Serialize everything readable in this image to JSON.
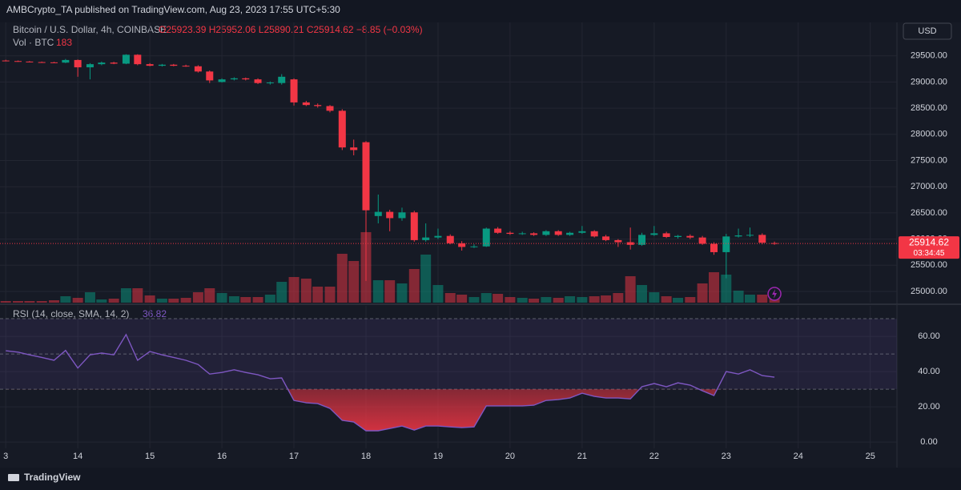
{
  "header": {
    "published": "AMBCrypto_TA published on TradingView.com, Aug 23, 2023 17:55 UTC+5:30"
  },
  "footer": {
    "brand": "TradingView"
  },
  "chart_data": {
    "type": "candlestick",
    "title": "Bitcoin / U.S. Dollar, 4h, COINBASE",
    "ohlc_text": "O25923.39 H25952.06 L25890.21 C25914.62 −8.85 (−0.03%)",
    "currency": "USD",
    "countdown": "03:34:45",
    "up_color": "#089981",
    "down_color": "#f23645",
    "grid": true,
    "xlim": [
      12.92,
      25.37
    ],
    "xticks": [
      {
        "value": 13,
        "label": "3"
      },
      14,
      15,
      16,
      17,
      18,
      19,
      20,
      21,
      22,
      23,
      24,
      25
    ],
    "ylim": [
      24786,
      30107
    ],
    "yticks": [
      {
        "value": 25000,
        "label": "25000.00"
      },
      {
        "value": 25500,
        "label": "25500.00"
      },
      {
        "value": 26000,
        "label": "26000.00"
      },
      {
        "value": 26500,
        "label": "26500.00"
      },
      {
        "value": 27000,
        "label": "27000.00"
      },
      {
        "value": 27500,
        "label": "27500.00"
      },
      {
        "value": 28000,
        "label": "28000.00"
      },
      {
        "value": 28500,
        "label": "28500.00"
      },
      {
        "value": 29000,
        "label": "29000.00"
      },
      {
        "value": 29500,
        "label": "29500.00"
      }
    ],
    "x": [
      13,
      13.17,
      13.33,
      13.5,
      13.67,
      13.83,
      14,
      14.17,
      14.33,
      14.5,
      14.67,
      14.83,
      15,
      15.17,
      15.33,
      15.5,
      15.67,
      15.83,
      16,
      16.17,
      16.33,
      16.5,
      16.67,
      16.83,
      17,
      17.17,
      17.33,
      17.5,
      17.67,
      17.83,
      18,
      18.17,
      18.33,
      18.5,
      18.67,
      18.83,
      19,
      19.17,
      19.33,
      19.5,
      19.67,
      19.83,
      20,
      20.17,
      20.33,
      20.5,
      20.67,
      20.83,
      21,
      21.17,
      21.33,
      21.5,
      21.67,
      21.83,
      22,
      22.17,
      22.33,
      22.5,
      22.67,
      22.83,
      23,
      23.17,
      23.33,
      23.5,
      23.67
    ],
    "open": [
      29410,
      29400,
      29390,
      29380,
      29375,
      29370,
      29420,
      29280,
      29340,
      29370,
      29350,
      29520,
      29340,
      29310,
      29330,
      29310,
      29300,
      29200,
      29000,
      29050,
      29070,
      29050,
      28980,
      28980,
      29050,
      28610,
      28560,
      28540,
      28450,
      27750,
      27850,
      26440,
      26520,
      26400,
      26510,
      25980,
      26030,
      26060,
      25920,
      25850,
      25860,
      26200,
      26120,
      26100,
      26110,
      26080,
      26150,
      26080,
      26120,
      26150,
      26050,
      25980,
      25940,
      25890,
      26080,
      26110,
      26040,
      26060,
      26030,
      25910,
      25750,
      26050,
      26070,
      26080,
      25923.39
    ],
    "high": [
      29425,
      29410,
      29400,
      29390,
      29385,
      29440,
      29430,
      29360,
      29390,
      29385,
      29530,
      29530,
      29360,
      29345,
      29345,
      29330,
      29320,
      29220,
      29070,
      29090,
      29085,
      29070,
      29010,
      29150,
      29070,
      28640,
      28590,
      28560,
      28480,
      27900,
      27870,
      26850,
      26560,
      26600,
      26540,
      26300,
      26200,
      26090,
      25960,
      25900,
      26220,
      26230,
      26150,
      26140,
      26130,
      26170,
      26170,
      26140,
      26250,
      26170,
      26080,
      26000,
      26220,
      26120,
      26250,
      26140,
      26080,
      26090,
      26060,
      25940,
      26100,
      26200,
      26220,
      26110,
      25952.06
    ],
    "low": [
      29395,
      29385,
      29375,
      29365,
      29360,
      29360,
      29100,
      29050,
      29320,
      29340,
      29340,
      29320,
      29300,
      29295,
      29300,
      29290,
      29180,
      28980,
      28990,
      29030,
      29030,
      28960,
      28950,
      28950,
      28550,
      28540,
      28510,
      28420,
      27700,
      27600,
      25200,
      26300,
      26150,
      26350,
      25950,
      25950,
      26000,
      25900,
      25780,
      25830,
      25850,
      26100,
      26080,
      26080,
      26060,
      26060,
      26060,
      26060,
      26100,
      26030,
      25960,
      25850,
      25800,
      25870,
      26060,
      26020,
      26010,
      26000,
      25890,
      25700,
      25250,
      26030,
      26040,
      25900,
      25890.21
    ],
    "close": [
      29400,
      29390,
      29380,
      29375,
      29370,
      29420,
      29280,
      29340,
      29370,
      29350,
      29520,
      29340,
      29310,
      29330,
      29310,
      29300,
      29200,
      29030,
      29050,
      29070,
      29050,
      28980,
      28990,
      29100,
      28610,
      28560,
      28540,
      28450,
      27750,
      27700,
      26550,
      26520,
      26400,
      26510,
      25980,
      26030,
      26060,
      25920,
      25850,
      25860,
      26200,
      26120,
      26100,
      26110,
      26080,
      26150,
      26080,
      26120,
      26150,
      26050,
      25980,
      25940,
      25890,
      26080,
      26110,
      26040,
      26060,
      26030,
      25910,
      25750,
      26050,
      26070,
      26080,
      25930,
      25914.62
    ],
    "volume": {
      "title": "Vol · BTC",
      "ylim": [
        0,
        8000
      ],
      "values": [
        46,
        46,
        46,
        46,
        69,
        184,
        138,
        299,
        92,
        115,
        414,
        414,
        207,
        115,
        115,
        138,
        299,
        414,
        276,
        184,
        161,
        161,
        230,
        598,
        736,
        690,
        460,
        460,
        1403,
        1196,
        2024,
        644,
        644,
        552,
        966,
        1380,
        506,
        276,
        230,
        161,
        276,
        253,
        161,
        138,
        115,
        161,
        138,
        184,
        161,
        184,
        207,
        276,
        759,
        506,
        299,
        184,
        138,
        161,
        552,
        874,
        805,
        345,
        230,
        230,
        183
      ]
    },
    "rsi": {
      "title": "RSI (14, close, SMA, 14, 2)",
      "color": "#7e57c2",
      "ylim": [
        -3.6,
        77.3
      ],
      "band": [
        30,
        70
      ],
      "midline": 50,
      "yticks": [
        {
          "value": 0,
          "label": "0.00"
        },
        {
          "value": 20,
          "label": "20.00"
        },
        {
          "value": 40,
          "label": "40.00"
        },
        {
          "value": 60,
          "label": "60.00"
        }
      ],
      "values": [
        51.8,
        51,
        49.5,
        48,
        46.4,
        52,
        42,
        49.5,
        50.5,
        49.5,
        61,
        46.4,
        51.4,
        49.5,
        48,
        46.4,
        44,
        38.6,
        39.5,
        41,
        39.5,
        38.2,
        35.9,
        36.4,
        23.6,
        22.3,
        21.8,
        19.1,
        12.3,
        11.4,
        6.4,
        6.4,
        7.7,
        9.1,
        6.8,
        9.1,
        9.1,
        8.6,
        8.2,
        8.6,
        20.5,
        20.5,
        20.5,
        20.5,
        20.9,
        23.6,
        24.1,
        25,
        27.7,
        25.9,
        25,
        25,
        24.5,
        31.4,
        33.2,
        31.4,
        33.6,
        32.3,
        29.1,
        26.4,
        40,
        38.6,
        41,
        37.7,
        36.82
      ]
    }
  }
}
